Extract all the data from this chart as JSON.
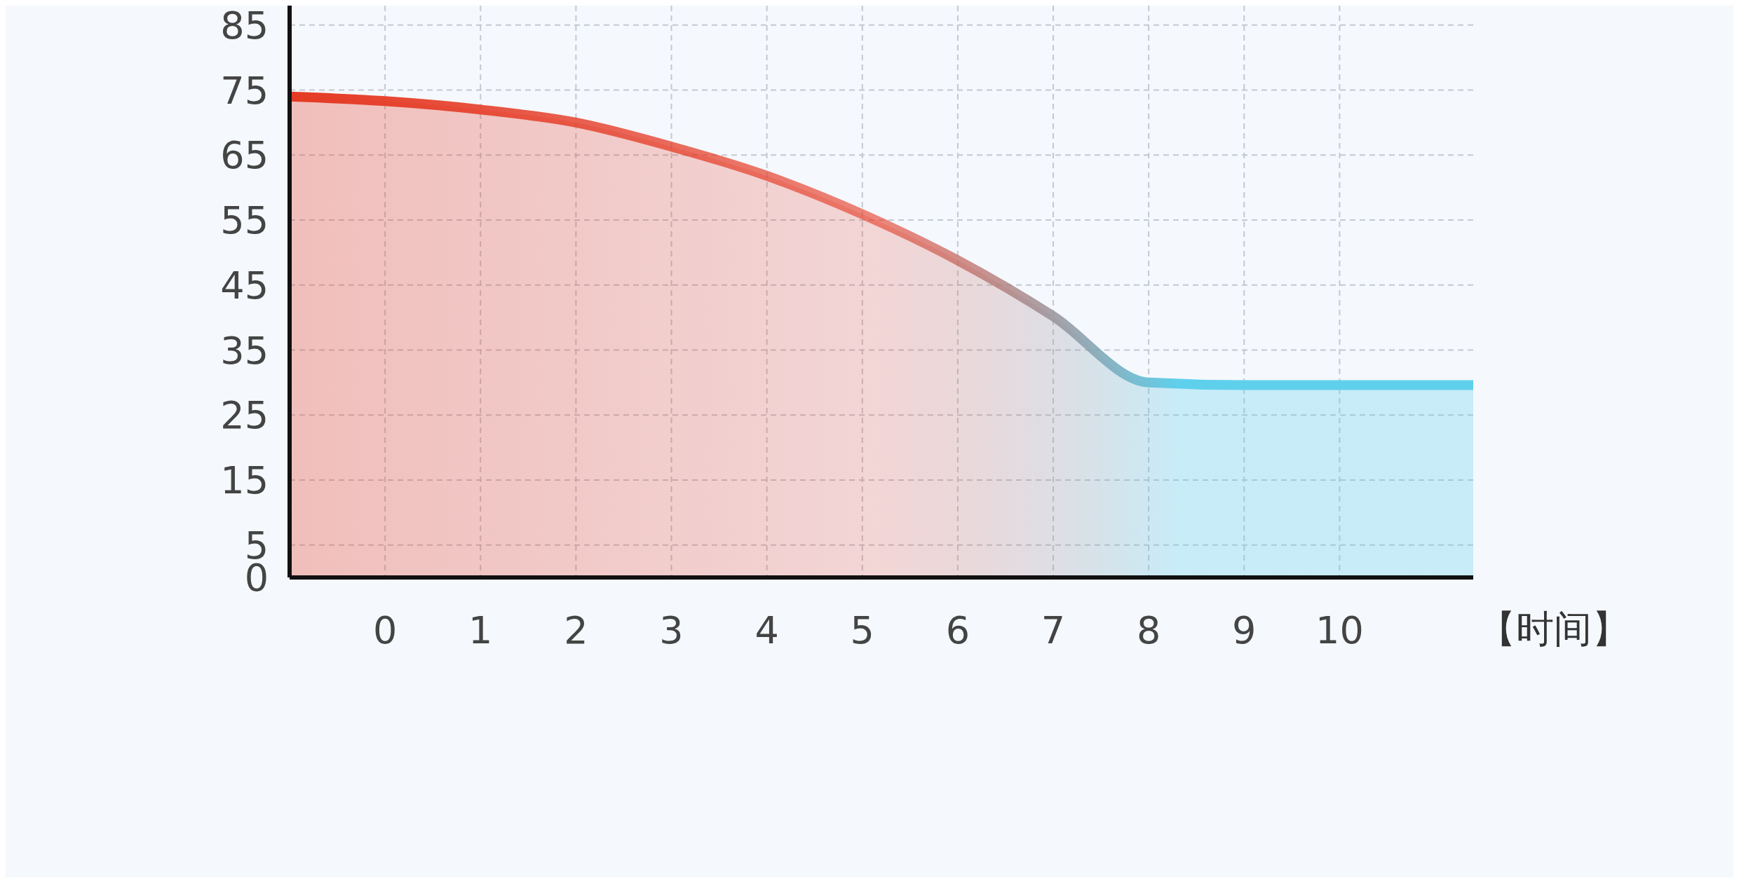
{
  "chart_data": {
    "type": "area",
    "xlabel": "【时间】",
    "x": [
      -1,
      0,
      1,
      2,
      3,
      4,
      5,
      6,
      7,
      8,
      9,
      10,
      11.4
    ],
    "series": [
      {
        "color": "#e53a24",
        "values": [
          74,
          73.3,
          72,
          70,
          66.3,
          61.8,
          55.9,
          48.8,
          40.2,
          30,
          29.6,
          29.6,
          29.6
        ]
      }
    ],
    "xlim": [
      -1,
      11.4
    ],
    "xticks": [
      0,
      1,
      2,
      3,
      4,
      5,
      6,
      7,
      8,
      9,
      10
    ],
    "ylim": [
      0,
      88
    ],
    "yticks": [
      0,
      5,
      15,
      25,
      35,
      45,
      55,
      65,
      75,
      85
    ],
    "grid": true,
    "legend": false,
    "marker": "none",
    "line_style": "solid"
  }
}
